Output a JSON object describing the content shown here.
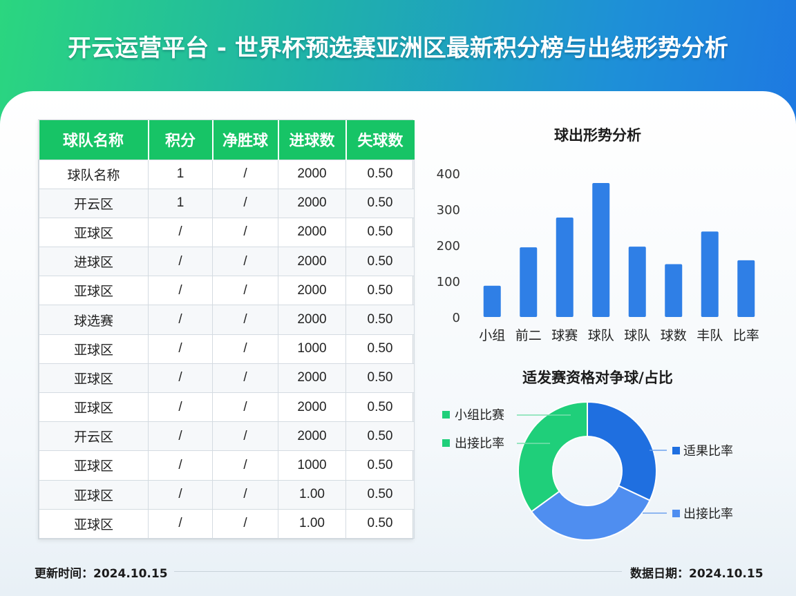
{
  "title": "开云运营平台 - 世界杯预选赛亚洲区最新积分榜与出线形势分析",
  "table": {
    "headers": [
      "球队名称",
      "积分",
      "净胜球",
      "进球数",
      "失球数"
    ],
    "rows": [
      [
        "球队名称",
        "1",
        "/",
        "2000",
        "0.50"
      ],
      [
        "开云区",
        "1",
        "/",
        "2000",
        "0.50"
      ],
      [
        "亚球区",
        "/",
        "/",
        "2000",
        "0.50"
      ],
      [
        "进球区",
        "/",
        "/",
        "2000",
        "0.50"
      ],
      [
        "亚球区",
        "/",
        "/",
        "2000",
        "0.50"
      ],
      [
        "球选赛",
        "/",
        "/",
        "2000",
        "0.50"
      ],
      [
        "亚球区",
        "/",
        "/",
        "1000",
        "0.50"
      ],
      [
        "亚球区",
        "/",
        "/",
        "2000",
        "0.50"
      ],
      [
        "亚球区",
        "/",
        "/",
        "2000",
        "0.50"
      ],
      [
        "开云区",
        "/",
        "/",
        "2000",
        "0.50"
      ],
      [
        "亚球区",
        "/",
        "/",
        "1000",
        "0.50"
      ],
      [
        "亚球区",
        "/",
        "/",
        "1.00",
        "0.50"
      ],
      [
        "亚球区",
        "/",
        "/",
        "1.00",
        "0.50"
      ]
    ]
  },
  "chart_data": [
    {
      "type": "bar",
      "title": "球出形势分析",
      "categories": [
        "小组",
        "前二",
        "球赛",
        "球队",
        "球队",
        "球数",
        "丰队",
        "比率"
      ],
      "values": [
        87,
        194,
        277,
        373,
        196,
        147,
        238,
        158
      ],
      "yticks": [
        0,
        100,
        200,
        300,
        400
      ],
      "ylim": [
        0,
        400
      ],
      "color": "#2f7fe6",
      "grid": false
    },
    {
      "type": "pie",
      "title": "适发赛资格对争球/占比",
      "labels": [
        "适果比率",
        "出接比率",
        "出接比率",
        "小组比赛"
      ],
      "values": [
        32,
        33,
        35,
        0
      ],
      "colors": [
        "#1f6fe0",
        "#4f8ef0",
        "#1fcf7a",
        "#1fcf7a"
      ]
    }
  ],
  "footer": {
    "updated": "更新时间：2024.10.15",
    "data_date": "数据日期：2024.10.15"
  }
}
